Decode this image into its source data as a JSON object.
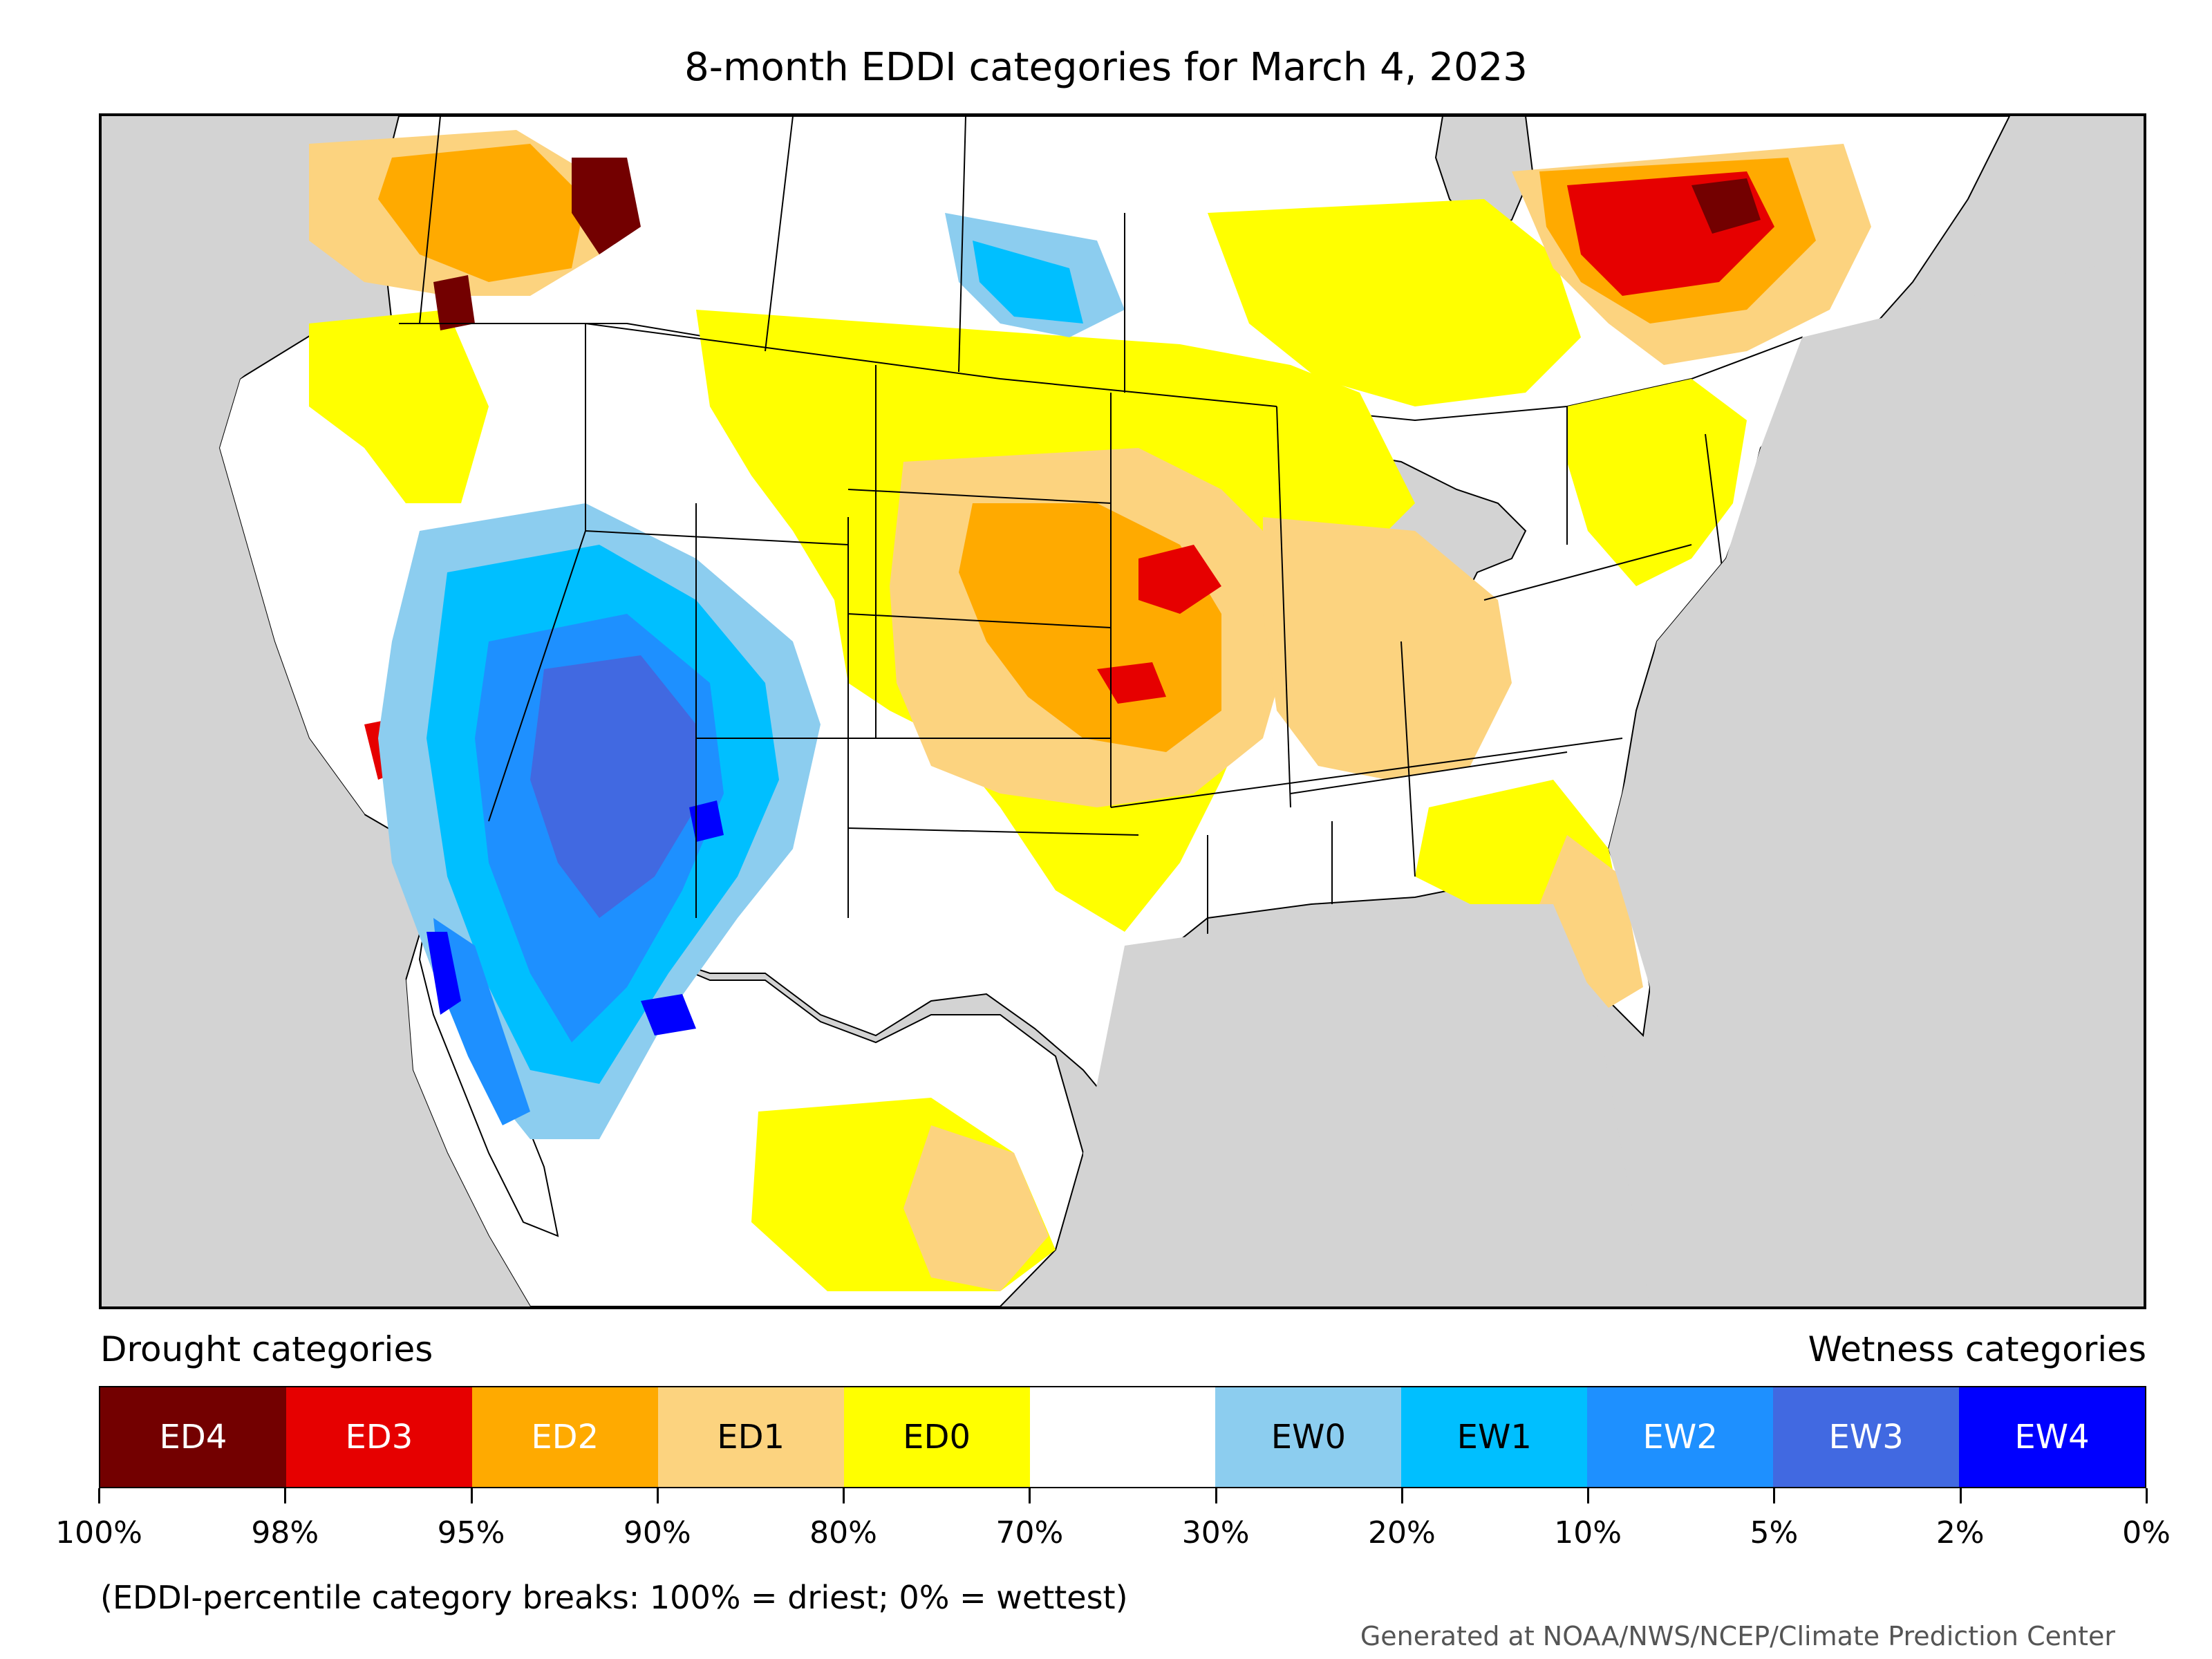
{
  "title": "8-month EDDI categories for March 4, 2023",
  "legend": {
    "drought_heading": "Drought categories",
    "wetness_heading": "Wetness categories",
    "categories": [
      {
        "label": "ED4",
        "color": "#730000",
        "text_color": "#ffffff"
      },
      {
        "label": "ED3",
        "color": "#e60000",
        "text_color": "#ffffff"
      },
      {
        "label": "ED2",
        "color": "#ffaa00",
        "text_color": "#ffffff"
      },
      {
        "label": "ED1",
        "color": "#fcd37f",
        "text_color": "#000000"
      },
      {
        "label": "ED0",
        "color": "#ffff00",
        "text_color": "#000000"
      },
      {
        "label": "",
        "color": "#ffffff",
        "text_color": "#000000"
      },
      {
        "label": "EW0",
        "color": "#8ccdef",
        "text_color": "#000000"
      },
      {
        "label": "EW1",
        "color": "#00bfff",
        "text_color": "#000000"
      },
      {
        "label": "EW2",
        "color": "#1e90ff",
        "text_color": "#ffffff"
      },
      {
        "label": "EW3",
        "color": "#4169e1",
        "text_color": "#ffffff"
      },
      {
        "label": "EW4",
        "color": "#0000ff",
        "text_color": "#ffffff"
      }
    ],
    "breaks": [
      "100%",
      "98%",
      "95%",
      "90%",
      "80%",
      "70%",
      "30%",
      "20%",
      "10%",
      "5%",
      "2%",
      "0%"
    ]
  },
  "note": "(EDDI-percentile category breaks: 100% = driest; 0% = wettest)",
  "credit": "Generated at NOAA/NWS/NCEP/Climate Prediction Center",
  "map": {
    "background_color": "#d3d3d3",
    "land_color": "#ffffff",
    "border_color": "#000000"
  }
}
